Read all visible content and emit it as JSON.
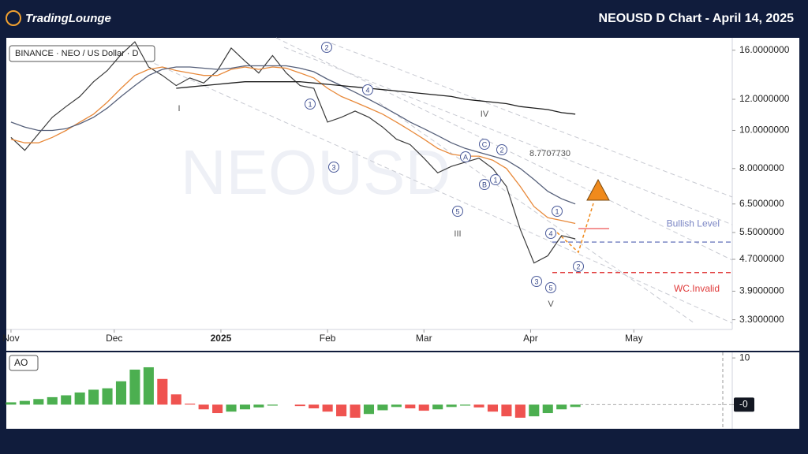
{
  "header": {
    "logo": "TradingLounge",
    "title": "NEOUSD D Chart - April 14, 2025"
  },
  "chart_data": [
    {
      "type": "line",
      "symbol_label": "BINANCE · NEO / US Dollar · D",
      "watermark": "NEOUSD",
      "log_scale": true,
      "ylim": [
        3.16,
        17.2
      ],
      "xlim": [
        -0.34,
        52.4
      ],
      "yticks": [
        {
          "value": 16,
          "label": "16.0000000"
        },
        {
          "value": 12,
          "label": "12.0000000"
        },
        {
          "value": 10,
          "label": "10.0000000"
        },
        {
          "value": 8,
          "label": "8.0000000"
        },
        {
          "value": 6.5,
          "label": "6.5000000"
        },
        {
          "value": 5.5,
          "label": "5.5000000"
        },
        {
          "value": 4.7,
          "label": "4.7000000"
        },
        {
          "value": 3.9,
          "label": "3.9000000"
        },
        {
          "value": 3.3,
          "label": "3.3000000"
        }
      ],
      "xticks": [
        {
          "value": 0,
          "label": "Nov"
        },
        {
          "value": 7.5,
          "label": "Dec"
        },
        {
          "value": 15.25,
          "label": "2025"
        },
        {
          "value": 23,
          "label": "Feb"
        },
        {
          "value": 30,
          "label": "Mar"
        },
        {
          "value": 37.75,
          "label": "Apr"
        },
        {
          "value": 45.25,
          "label": "May"
        }
      ],
      "series": [
        {
          "color": "#3a3a3a",
          "values": [
            9.6,
            8.9,
            9.8,
            10.8,
            11.5,
            12.2,
            13.3,
            14.2,
            15.6,
            16.8,
            14.5,
            13.8,
            13.0,
            13.6,
            13.2,
            14.2,
            16.2,
            15.0,
            14.0,
            15.5,
            14.0,
            13.0,
            12.8,
            10.5,
            10.8,
            11.2,
            10.8,
            10.2,
            9.5,
            9.2,
            8.5,
            7.8,
            8.1,
            8.3,
            8.5,
            8.0,
            7.2,
            5.6,
            4.6,
            4.8,
            5.4,
            5.3
          ]
        },
        {
          "color": "#e8893a",
          "values": [
            9.5,
            9.3,
            9.3,
            9.6,
            10,
            10.5,
            11,
            11.8,
            12.8,
            13.8,
            14.3,
            14.5,
            14.2,
            14.0,
            13.8,
            13.8,
            14.3,
            14.5,
            14.3,
            14.5,
            14.4,
            14,
            13.6,
            12.8,
            12.2,
            11.8,
            11.4,
            11.0,
            10.5,
            10.0,
            9.5,
            9.0,
            8.7,
            8.6,
            8.6,
            8.4,
            8.0,
            7.2,
            6.4,
            6.0,
            5.9,
            5.8
          ]
        },
        {
          "color": "#56607a",
          "values": [
            10.5,
            10.2,
            10.0,
            10.0,
            10.1,
            10.4,
            10.8,
            11.4,
            12.2,
            13.0,
            13.8,
            14.3,
            14.5,
            14.5,
            14.4,
            14.3,
            14.4,
            14.6,
            14.6,
            14.6,
            14.6,
            14.4,
            14.1,
            13.5,
            13.0,
            12.5,
            12.0,
            11.5,
            11.0,
            10.5,
            10.1,
            9.7,
            9.3,
            9.0,
            8.8,
            8.6,
            8.4,
            8.0,
            7.5,
            7.0,
            6.7,
            6.5
          ]
        },
        {
          "color": "#1e1e1e",
          "values": [
            null,
            null,
            null,
            null,
            null,
            null,
            null,
            null,
            null,
            null,
            null,
            null,
            12.8,
            12.9,
            13.0,
            13.1,
            13.2,
            13.3,
            13.3,
            13.3,
            13.3,
            13.3,
            13.2,
            13.1,
            13.0,
            12.9,
            12.8,
            12.7,
            12.6,
            12.5,
            12.4,
            12.3,
            12.2,
            12.0,
            11.9,
            11.8,
            11.7,
            11.5,
            11.4,
            11.3,
            11.1,
            11.0
          ]
        }
      ],
      "levels": [
        {
          "name": "Bullish Level",
          "value": 5.2,
          "color": "#7b86c4"
        },
        {
          "name": "WC.Invalid",
          "value": 4.35,
          "color": "#e03a3a"
        }
      ],
      "annotations": [
        "2",
        "4",
        "1",
        "3",
        "I",
        "IV",
        "C",
        "2",
        "8.7707730",
        "A",
        "B",
        "1",
        "5",
        "III",
        "1",
        "4",
        "2",
        "3",
        "5",
        "V"
      ]
    },
    {
      "type": "histogram",
      "label": "AO",
      "ylim": [
        -5,
        11.2
      ],
      "yticks": [
        10,
        {
          "value": 0,
          "label": "-0"
        }
      ],
      "up_color": "#4caf50",
      "down_color": "#ef5350",
      "values": [
        0.5,
        0.8,
        1.2,
        1.6,
        2.0,
        2.6,
        3.2,
        3.5,
        5,
        7.5,
        8,
        5.5,
        2.2,
        0.2,
        -1,
        -1.8,
        -1.5,
        -1,
        -0.6,
        -0.2,
        0,
        -0.3,
        -0.8,
        -1.5,
        -2.5,
        -2.8,
        -2,
        -1.2,
        -0.5,
        -0.8,
        -1.3,
        -1.0,
        -0.5,
        -0.2,
        -0.6,
        -1.5,
        -2.5,
        -2.8,
        -2.5,
        -1.8,
        -1.0,
        -0.5
      ]
    }
  ]
}
